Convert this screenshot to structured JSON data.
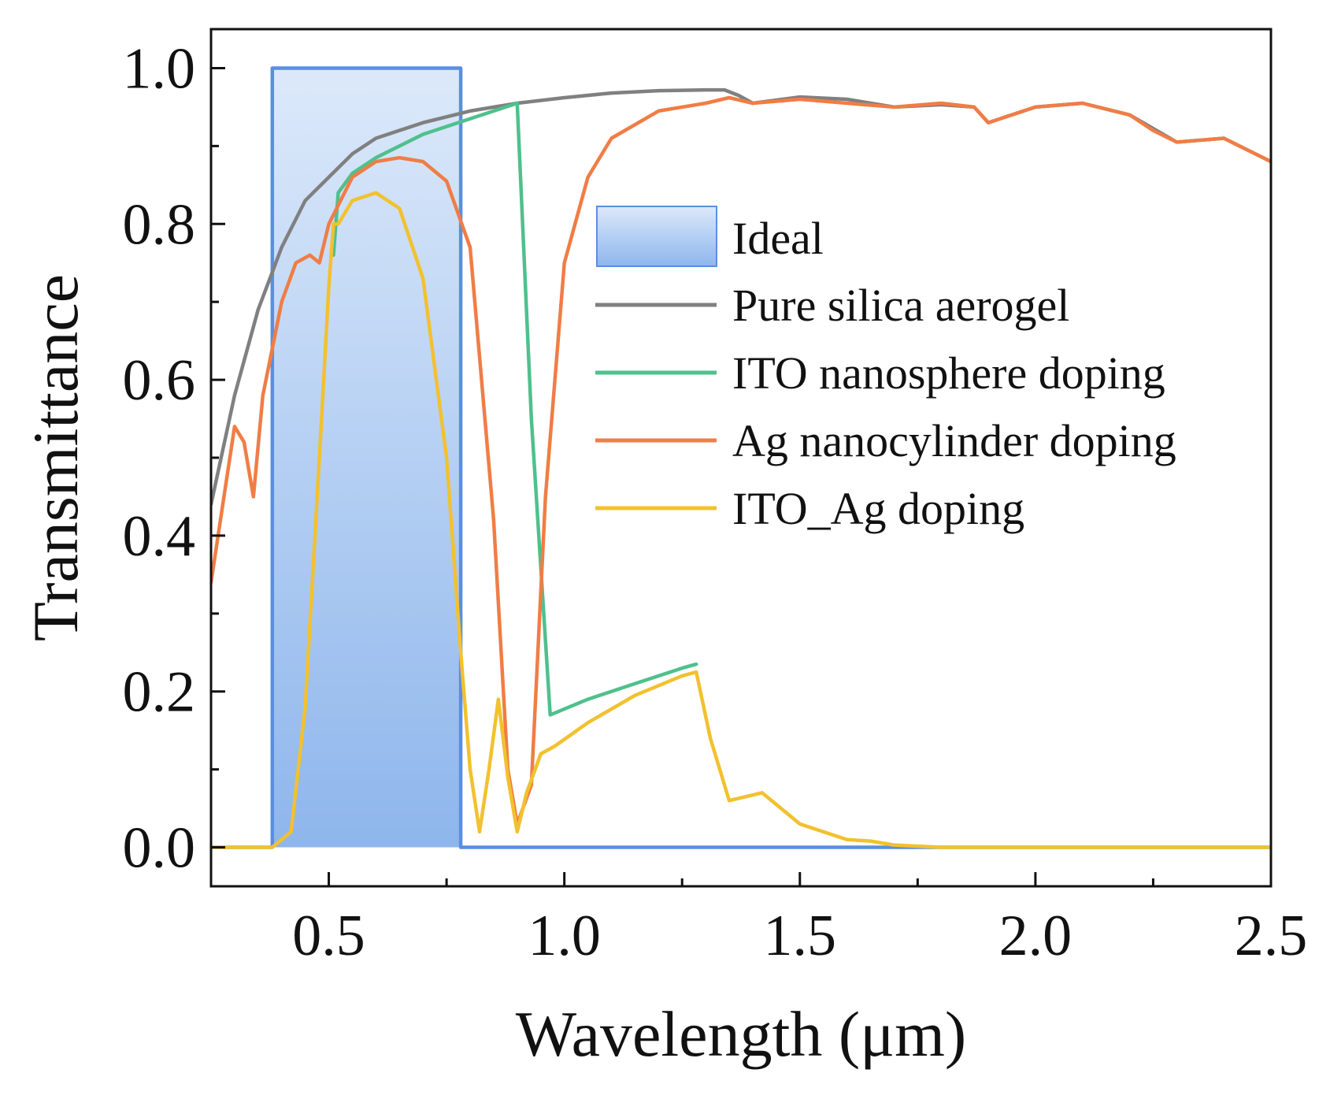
{
  "chart_data": {
    "type": "line",
    "xlabel": "Wavelength (μm)",
    "ylabel": "Transmittance",
    "xlim": [
      0.25,
      2.5
    ],
    "ylim": [
      -0.05,
      1.05
    ],
    "xticks": [
      0.5,
      1.0,
      1.5,
      2.0,
      2.5
    ],
    "xtick_labels": [
      "0.5",
      "1.0",
      "1.5",
      "2.0",
      "2.5"
    ],
    "yticks": [
      0.0,
      0.2,
      0.4,
      0.6,
      0.8,
      1.0
    ],
    "ytick_labels": [
      "0.0",
      "0.2",
      "0.4",
      "0.6",
      "0.8",
      "1.0"
    ],
    "grid": false,
    "legend_position": "center-right",
    "ideal_band": {
      "name": "Ideal",
      "x_start": 0.38,
      "x_end": 0.78,
      "value": 1.0,
      "fill_color_top": "#dce9fa",
      "fill_color_bottom": "#8eb6ec",
      "edge_color": "#5b8ee0"
    },
    "series": [
      {
        "name": "Ideal",
        "color": "#5b8ee0",
        "x": [
          0.25,
          0.38,
          0.38,
          0.78,
          0.78,
          2.5
        ],
        "y": [
          0.0,
          0.0,
          1.0,
          1.0,
          0.0,
          0.0
        ]
      },
      {
        "name": "Pure silica aerogel",
        "color": "#808080",
        "x": [
          0.25,
          0.3,
          0.35,
          0.4,
          0.45,
          0.5,
          0.55,
          0.6,
          0.7,
          0.8,
          0.9,
          1.0,
          1.1,
          1.2,
          1.3,
          1.34,
          1.37,
          1.4,
          1.5,
          1.6,
          1.7,
          1.8,
          1.87,
          1.9,
          2.0,
          2.1,
          2.2,
          2.3,
          2.4,
          2.5
        ],
        "y": [
          0.44,
          0.58,
          0.69,
          0.77,
          0.83,
          0.86,
          0.89,
          0.91,
          0.93,
          0.945,
          0.955,
          0.962,
          0.968,
          0.971,
          0.972,
          0.972,
          0.965,
          0.955,
          0.963,
          0.96,
          0.95,
          0.953,
          0.95,
          0.93,
          0.95,
          0.955,
          0.94,
          0.905,
          0.91,
          0.88
        ]
      },
      {
        "name": "ITO nanosphere doping",
        "color": "#4fc08d",
        "x": [
          0.51,
          0.52,
          0.55,
          0.6,
          0.7,
          0.8,
          0.85,
          0.9,
          0.93,
          0.97,
          1.05,
          1.15,
          1.25,
          1.28
        ],
        "y": [
          0.76,
          0.84,
          0.865,
          0.885,
          0.915,
          0.935,
          0.945,
          0.955,
          0.55,
          0.17,
          0.19,
          0.21,
          0.23,
          0.235
        ]
      },
      {
        "name": "Ag nanocylinder doping",
        "color": "#f07d45",
        "x": [
          0.25,
          0.28,
          0.3,
          0.32,
          0.34,
          0.36,
          0.4,
          0.43,
          0.46,
          0.48,
          0.5,
          0.55,
          0.6,
          0.65,
          0.7,
          0.75,
          0.8,
          0.85,
          0.88,
          0.9,
          0.93,
          0.96,
          1.0,
          1.05,
          1.1,
          1.2,
          1.3,
          1.35,
          1.4,
          1.5,
          1.6,
          1.7,
          1.8,
          1.87,
          1.9,
          2.0,
          2.1,
          2.2,
          2.25,
          2.3,
          2.4,
          2.5
        ],
        "y": [
          0.34,
          0.46,
          0.54,
          0.52,
          0.45,
          0.58,
          0.7,
          0.75,
          0.76,
          0.75,
          0.8,
          0.86,
          0.88,
          0.885,
          0.88,
          0.855,
          0.77,
          0.42,
          0.1,
          0.03,
          0.08,
          0.45,
          0.75,
          0.86,
          0.91,
          0.945,
          0.955,
          0.962,
          0.955,
          0.96,
          0.955,
          0.95,
          0.955,
          0.95,
          0.93,
          0.95,
          0.955,
          0.94,
          0.92,
          0.905,
          0.91,
          0.88
        ]
      },
      {
        "name": "ITO_Ag doping",
        "color": "#f2c12e",
        "x": [
          0.25,
          0.38,
          0.42,
          0.45,
          0.48,
          0.5,
          0.51,
          0.52,
          0.55,
          0.6,
          0.65,
          0.7,
          0.75,
          0.78,
          0.8,
          0.82,
          0.84,
          0.86,
          0.88,
          0.9,
          0.92,
          0.95,
          0.98,
          1.05,
          1.15,
          1.25,
          1.28,
          1.31,
          1.35,
          1.42,
          1.5,
          1.6,
          1.65,
          1.7,
          1.8,
          2.0,
          2.5
        ],
        "y": [
          0.0,
          0.0,
          0.02,
          0.18,
          0.5,
          0.72,
          0.8,
          0.8,
          0.83,
          0.84,
          0.82,
          0.73,
          0.5,
          0.25,
          0.1,
          0.02,
          0.1,
          0.19,
          0.09,
          0.02,
          0.07,
          0.12,
          0.13,
          0.16,
          0.195,
          0.22,
          0.225,
          0.14,
          0.06,
          0.07,
          0.03,
          0.01,
          0.008,
          0.003,
          0.0,
          0.0,
          0.0
        ]
      }
    ]
  }
}
